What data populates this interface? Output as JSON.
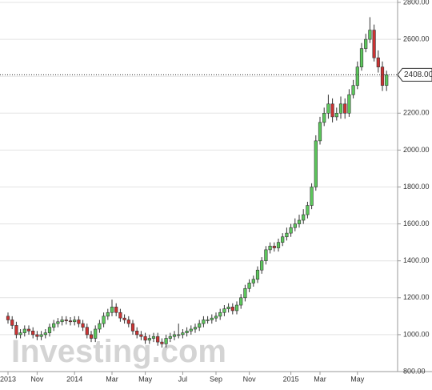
{
  "chart_data": {
    "type": "candlestick",
    "watermark": "Investing.com",
    "up_color": "#5cc85c",
    "down_color": "#cc3333",
    "categories": [
      "2013",
      null,
      null,
      null,
      null,
      null,
      null,
      "Nov",
      null,
      null,
      null,
      null,
      null,
      null,
      null,
      null,
      "2014",
      null,
      null,
      null,
      null,
      null,
      null,
      null,
      null,
      "Mar",
      null,
      null,
      null,
      null,
      null,
      null,
      null,
      "May",
      null,
      null,
      null,
      null,
      null,
      null,
      null,
      null,
      "Jul",
      null,
      null,
      null,
      null,
      null,
      null,
      null,
      "Sep",
      null,
      null,
      null,
      null,
      null,
      null,
      null,
      "Nov",
      null,
      null,
      null,
      null,
      null,
      null,
      null,
      null,
      null,
      "2015",
      null,
      null,
      null,
      null,
      null,
      null,
      "Mar",
      null,
      null,
      null,
      null,
      null,
      null,
      null,
      null,
      "May",
      null,
      null,
      null,
      null,
      null,
      null,
      null
    ],
    "open": [
      1100,
      1080,
      1050,
      1000,
      1010,
      1030,
      1020,
      1000,
      990,
      1000,
      1010,
      1040,
      1060,
      1070,
      1080,
      1075,
      1070,
      1080,
      1060,
      1040,
      1000,
      980,
      1030,
      1060,
      1100,
      1120,
      1150,
      1120,
      1090,
      1080,
      1060,
      1020,
      1000,
      990,
      970,
      980,
      990,
      960,
      950,
      980,
      990,
      1000,
      1000,
      1010,
      1020,
      1030,
      1040,
      1060,
      1080,
      1080,
      1090,
      1100,
      1120,
      1140,
      1150,
      1130,
      1160,
      1200,
      1250,
      1280,
      1300,
      1350,
      1400,
      1460,
      1480,
      1470,
      1500,
      1530,
      1550,
      1580,
      1600,
      1620,
      1650,
      1700,
      1800,
      2050,
      2150,
      2200,
      2250,
      2180,
      2200,
      2250,
      2200,
      2300,
      2350,
      2450,
      2550,
      2600,
      2650,
      2500,
      2450,
      2350
    ],
    "high": [
      1120,
      1100,
      1070,
      1030,
      1050,
      1050,
      1040,
      1020,
      1020,
      1030,
      1060,
      1080,
      1090,
      1100,
      1100,
      1095,
      1100,
      1100,
      1080,
      1060,
      1020,
      1050,
      1080,
      1120,
      1140,
      1190,
      1170,
      1140,
      1110,
      1100,
      1080,
      1040,
      1020,
      1010,
      1000,
      1010,
      1010,
      980,
      1000,
      1010,
      1020,
      1060,
      1030,
      1040,
      1050,
      1060,
      1080,
      1100,
      1100,
      1110,
      1120,
      1140,
      1160,
      1170,
      1170,
      1180,
      1220,
      1270,
      1300,
      1320,
      1370,
      1420,
      1480,
      1500,
      1500,
      1520,
      1550,
      1580,
      1600,
      1630,
      1650,
      1680,
      1720,
      1820,
      2080,
      2180,
      2230,
      2300,
      2280,
      2230,
      2290,
      2280,
      2330,
      2380,
      2480,
      2580,
      2630,
      2720,
      2680,
      2540,
      2480,
      2430
    ],
    "low": [
      1060,
      1030,
      980,
      980,
      990,
      1000,
      980,
      970,
      970,
      980,
      990,
      1020,
      1040,
      1050,
      1055,
      1050,
      1050,
      1040,
      1020,
      980,
      960,
      960,
      1010,
      1040,
      1080,
      1100,
      1100,
      1070,
      1060,
      1040,
      1000,
      980,
      970,
      950,
      950,
      960,
      940,
      930,
      930,
      960,
      970,
      980,
      980,
      990,
      1000,
      1010,
      1020,
      1040,
      1060,
      1060,
      1070,
      1080,
      1100,
      1120,
      1110,
      1110,
      1140,
      1180,
      1230,
      1260,
      1280,
      1330,
      1380,
      1440,
      1450,
      1450,
      1480,
      1510,
      1530,
      1560,
      1580,
      1600,
      1630,
      1680,
      1780,
      2030,
      2130,
      2170,
      2150,
      2160,
      2170,
      2170,
      2180,
      2280,
      2330,
      2430,
      2530,
      2580,
      2480,
      2420,
      2320,
      2320
    ],
    "close": [
      1080,
      1050,
      1000,
      1010,
      1030,
      1020,
      1000,
      990,
      1000,
      1010,
      1040,
      1060,
      1070,
      1080,
      1075,
      1070,
      1080,
      1060,
      1040,
      1000,
      980,
      1030,
      1060,
      1100,
      1120,
      1150,
      1120,
      1090,
      1080,
      1060,
      1020,
      1000,
      990,
      970,
      980,
      990,
      960,
      950,
      980,
      990,
      1000,
      1000,
      1010,
      1020,
      1030,
      1040,
      1060,
      1080,
      1080,
      1090,
      1100,
      1120,
      1140,
      1150,
      1130,
      1160,
      1200,
      1250,
      1280,
      1300,
      1350,
      1400,
      1460,
      1480,
      1470,
      1500,
      1530,
      1550,
      1580,
      1600,
      1620,
      1650,
      1700,
      1800,
      2050,
      2150,
      2200,
      2250,
      2180,
      2200,
      2250,
      2200,
      2300,
      2350,
      2450,
      2550,
      2600,
      2650,
      2500,
      2450,
      2350,
      2408
    ],
    "ylim": [
      800,
      2800
    ],
    "yticks": [
      {
        "value": 800,
        "label": "800.00"
      },
      {
        "value": 1000,
        "label": "1000.00"
      },
      {
        "value": 1200,
        "label": "1200.00"
      },
      {
        "value": 1400,
        "label": "1400.00"
      },
      {
        "value": 1600,
        "label": "1600.00"
      },
      {
        "value": 1800,
        "label": "1800.00"
      },
      {
        "value": 2000,
        "label": "2000.00"
      },
      {
        "value": 2200,
        "label": "2200.00"
      },
      {
        "value": 2400,
        "label": "2400.00"
      },
      {
        "value": 2600,
        "label": "2600.00"
      },
      {
        "value": 2800,
        "label": "2800.00"
      }
    ],
    "current_price": {
      "value": 2408,
      "label": "2408.00"
    },
    "grid": true
  }
}
